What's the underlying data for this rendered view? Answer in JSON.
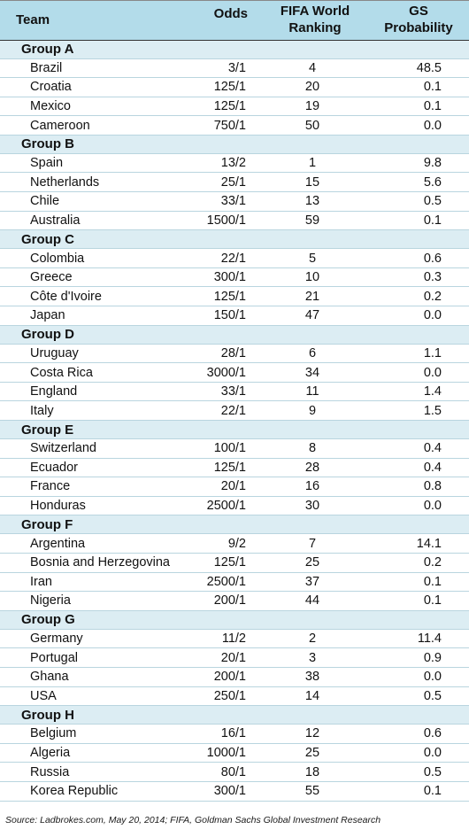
{
  "header": {
    "team": "Team",
    "odds": "Odds",
    "fifa_line1": "FIFA World",
    "fifa_line2": "Ranking",
    "gs_line1": "GS",
    "gs_line2": "Probability"
  },
  "groups": [
    {
      "name": "Group A",
      "teams": [
        {
          "team": "Brazil",
          "odds": "3/1",
          "rank": "4",
          "prob": "48.5"
        },
        {
          "team": "Croatia",
          "odds": "125/1",
          "rank": "20",
          "prob": "0.1"
        },
        {
          "team": "Mexico",
          "odds": "125/1",
          "rank": "19",
          "prob": "0.1"
        },
        {
          "team": "Cameroon",
          "odds": "750/1",
          "rank": "50",
          "prob": "0.0"
        }
      ]
    },
    {
      "name": "Group B",
      "teams": [
        {
          "team": "Spain",
          "odds": "13/2",
          "rank": "1",
          "prob": "9.8"
        },
        {
          "team": "Netherlands",
          "odds": "25/1",
          "rank": "15",
          "prob": "5.6"
        },
        {
          "team": "Chile",
          "odds": "33/1",
          "rank": "13",
          "prob": "0.5"
        },
        {
          "team": "Australia",
          "odds": "1500/1",
          "rank": "59",
          "prob": "0.1"
        }
      ]
    },
    {
      "name": "Group C",
      "teams": [
        {
          "team": "Colombia",
          "odds": "22/1",
          "rank": "5",
          "prob": "0.6"
        },
        {
          "team": "Greece",
          "odds": "300/1",
          "rank": "10",
          "prob": "0.3"
        },
        {
          "team": "Côte d'Ivoire",
          "odds": "125/1",
          "rank": "21",
          "prob": "0.2"
        },
        {
          "team": "Japan",
          "odds": "150/1",
          "rank": "47",
          "prob": "0.0"
        }
      ]
    },
    {
      "name": "Group D",
      "teams": [
        {
          "team": "Uruguay",
          "odds": "28/1",
          "rank": "6",
          "prob": "1.1"
        },
        {
          "team": "Costa Rica",
          "odds": "3000/1",
          "rank": "34",
          "prob": "0.0"
        },
        {
          "team": "England",
          "odds": "33/1",
          "rank": "11",
          "prob": "1.4"
        },
        {
          "team": "Italy",
          "odds": "22/1",
          "rank": "9",
          "prob": "1.5"
        }
      ]
    },
    {
      "name": "Group E",
      "teams": [
        {
          "team": "Switzerland",
          "odds": "100/1",
          "rank": "8",
          "prob": "0.4"
        },
        {
          "team": "Ecuador",
          "odds": "125/1",
          "rank": "28",
          "prob": "0.4"
        },
        {
          "team": "France",
          "odds": "20/1",
          "rank": "16",
          "prob": "0.8"
        },
        {
          "team": "Honduras",
          "odds": "2500/1",
          "rank": "30",
          "prob": "0.0"
        }
      ]
    },
    {
      "name": "Group F",
      "teams": [
        {
          "team": "Argentina",
          "odds": "9/2",
          "rank": "7",
          "prob": "14.1"
        },
        {
          "team": "Bosnia and Herzegovina",
          "odds": "125/1",
          "rank": "25",
          "prob": "0.2"
        },
        {
          "team": "Iran",
          "odds": "2500/1",
          "rank": "37",
          "prob": "0.1"
        },
        {
          "team": "Nigeria",
          "odds": "200/1",
          "rank": "44",
          "prob": "0.1"
        }
      ]
    },
    {
      "name": "Group G",
      "teams": [
        {
          "team": "Germany",
          "odds": "11/2",
          "rank": "2",
          "prob": "11.4"
        },
        {
          "team": "Portugal",
          "odds": "20/1",
          "rank": "3",
          "prob": "0.9"
        },
        {
          "team": "Ghana",
          "odds": "200/1",
          "rank": "38",
          "prob": "0.0"
        },
        {
          "team": "USA",
          "odds": "250/1",
          "rank": "14",
          "prob": "0.5"
        }
      ]
    },
    {
      "name": "Group H",
      "teams": [
        {
          "team": "Belgium",
          "odds": "16/1",
          "rank": "12",
          "prob": "0.6"
        },
        {
          "team": "Algeria",
          "odds": "1000/1",
          "rank": "25",
          "prob": "0.0"
        },
        {
          "team": "Russia",
          "odds": "80/1",
          "rank": "18",
          "prob": "0.5"
        },
        {
          "team": "Korea Republic",
          "odds": "300/1",
          "rank": "55",
          "prob": "0.1"
        }
      ]
    }
  ],
  "source": "Source: Ladbrokes.com, May 20, 2014; FIFA, Goldman Sachs Global Investment Research"
}
